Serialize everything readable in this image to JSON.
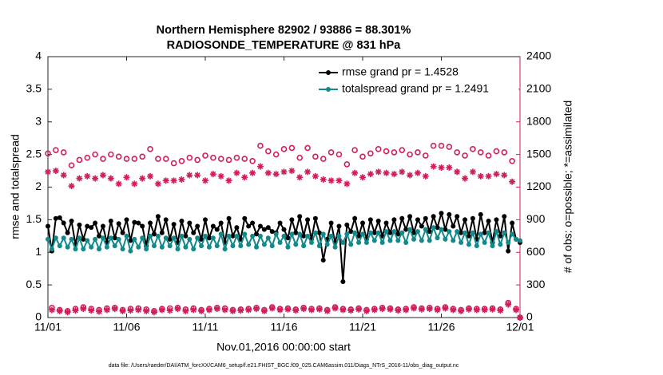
{
  "chart_data": {
    "type": "line",
    "title": [
      "Northern Hemisphere 82902 / 93886 = 88.301%",
      "RADIOSONDE_TEMPERATURE @ 831 hPa"
    ],
    "xlabel": "Nov.01,2016 00:00:00 start",
    "ylabel": "rmse and totalspread",
    "y2label": "# of obs: o=possible; *=assimilated",
    "footnote": "data file: /Users/raeder/DAI/ATM_forcXX/CAM6_setup/f.e21.FHIST_BGC.f09_025.CAM6assim.011/Diags_NTrS_2016-11/obs_diag_output.nc",
    "xlim": [
      0,
      30
    ],
    "xticks": [
      {
        "value": 0,
        "label": "11/01"
      },
      {
        "value": 5,
        "label": "11/06"
      },
      {
        "value": 10,
        "label": "11/11"
      },
      {
        "value": 15,
        "label": "11/16"
      },
      {
        "value": 20,
        "label": "11/21"
      },
      {
        "value": 25,
        "label": "11/26"
      },
      {
        "value": 30,
        "label": "12/01"
      }
    ],
    "ylim": [
      0,
      4
    ],
    "yticks": [
      0,
      0.5,
      1,
      1.5,
      2,
      2.5,
      3,
      3.5,
      4
    ],
    "y2lim": [
      0,
      2400
    ],
    "y2ticks": [
      0,
      300,
      600,
      900,
      1200,
      1500,
      1800,
      2100,
      2400
    ],
    "y2color": "#d11e5b",
    "legend": "upper right",
    "legend_text_color": "#1f4fe6",
    "x": [
      0,
      0.25,
      0.5,
      0.75,
      1,
      1.25,
      1.5,
      1.75,
      2,
      2.25,
      2.5,
      2.75,
      3,
      3.25,
      3.5,
      3.75,
      4,
      4.25,
      4.5,
      4.75,
      5,
      5.25,
      5.5,
      5.75,
      6,
      6.25,
      6.5,
      6.75,
      7,
      7.25,
      7.5,
      7.75,
      8,
      8.25,
      8.5,
      8.75,
      9,
      9.25,
      9.5,
      9.75,
      10,
      10.25,
      10.5,
      10.75,
      11,
      11.25,
      11.5,
      11.75,
      12,
      12.25,
      12.5,
      12.75,
      13,
      13.25,
      13.5,
      13.75,
      14,
      14.25,
      14.5,
      14.75,
      15,
      15.25,
      15.5,
      15.75,
      16,
      16.25,
      16.5,
      16.75,
      17,
      17.25,
      17.5,
      17.75,
      18,
      18.25,
      18.5,
      18.75,
      19,
      19.25,
      19.5,
      19.75,
      20,
      20.25,
      20.5,
      20.75,
      21,
      21.25,
      21.5,
      21.75,
      22,
      22.25,
      22.5,
      22.75,
      23,
      23.25,
      23.5,
      23.75,
      24,
      24.25,
      24.5,
      24.75,
      25,
      25.25,
      25.5,
      25.75,
      26,
      26.25,
      26.5,
      26.75,
      27,
      27.25,
      27.5,
      27.75,
      28,
      28.25,
      28.5,
      28.75,
      29,
      29.25,
      29.5,
      29.75,
      30
    ],
    "series": [
      {
        "name": "rmse grand pr = 1.4528",
        "color": "#000000",
        "marker": "dot",
        "line": true,
        "axis": "y",
        "values": [
          1.4,
          1.02,
          1.52,
          1.53,
          1.45,
          1.3,
          1.48,
          1.12,
          1.42,
          1.2,
          1.4,
          1.38,
          1.45,
          1.25,
          1.4,
          1.15,
          1.48,
          1.22,
          1.44,
          1.3,
          1.5,
          1.18,
          1.46,
          1.45,
          1.4,
          1.1,
          1.45,
          1.28,
          1.55,
          1.3,
          1.5,
          1.2,
          1.43,
          1.15,
          1.48,
          1.25,
          1.45,
          1.3,
          1.4,
          1.2,
          1.5,
          1.22,
          1.4,
          1.35,
          1.45,
          1.15,
          1.52,
          1.25,
          1.38,
          1.2,
          1.52,
          1.4,
          1.45,
          1.28,
          1.4,
          1.35,
          1.38,
          1.32,
          1.3,
          1.45,
          1.35,
          1.22,
          1.5,
          1.3,
          1.55,
          1.25,
          1.5,
          1.2,
          1.52,
          1.3,
          0.88,
          1.2,
          1.45,
          1.15,
          1.4,
          0.55,
          1.42,
          1.32,
          1.52,
          1.25,
          1.45,
          1.2,
          1.5,
          1.3,
          1.48,
          1.25,
          1.45,
          1.3,
          1.5,
          1.28,
          1.52,
          1.35,
          1.55,
          1.3,
          1.5,
          1.4,
          1.52,
          1.32,
          1.55,
          1.38,
          1.6,
          1.35,
          1.58,
          1.4,
          1.55,
          1.3,
          1.5,
          1.25,
          1.52,
          1.2,
          1.58,
          1.3,
          1.48,
          1.15,
          1.5,
          1.25,
          1.55,
          1.02,
          1.45,
          1.2,
          1.15
        ]
      },
      {
        "name": "totalspread grand pr = 1.2491",
        "color": "#12898a",
        "marker": "dot",
        "line": true,
        "axis": "y",
        "values": [
          1.2,
          1.05,
          1.22,
          1.1,
          1.22,
          1.08,
          1.2,
          1.05,
          1.22,
          1.05,
          1.18,
          1.08,
          1.2,
          1.05,
          1.22,
          1.08,
          1.22,
          1.1,
          1.2,
          1.05,
          1.25,
          1.02,
          1.2,
          1.08,
          1.22,
          1.05,
          1.25,
          1.1,
          1.25,
          1.08,
          1.22,
          1.1,
          1.22,
          1.05,
          1.25,
          1.08,
          1.2,
          1.05,
          1.22,
          1.1,
          1.25,
          1.08,
          1.22,
          1.1,
          1.28,
          1.05,
          1.25,
          1.1,
          1.25,
          1.1,
          1.28,
          1.12,
          1.25,
          1.08,
          1.25,
          1.12,
          1.22,
          1.1,
          1.28,
          1.15,
          1.25,
          1.08,
          1.28,
          1.12,
          1.28,
          1.1,
          1.25,
          1.15,
          1.3,
          1.1,
          1.28,
          1.12,
          1.25,
          1.08,
          1.25,
          1.15,
          1.28,
          1.12,
          1.3,
          1.15,
          1.28,
          1.15,
          1.3,
          1.18,
          1.3,
          1.15,
          1.32,
          1.18,
          1.32,
          1.18,
          1.3,
          1.15,
          1.35,
          1.2,
          1.32,
          1.18,
          1.35,
          1.18,
          1.38,
          1.22,
          1.35,
          1.2,
          1.32,
          1.18,
          1.32,
          1.15,
          1.3,
          1.12,
          1.3,
          1.1,
          1.28,
          1.15,
          1.3,
          1.1,
          1.32,
          1.12,
          1.3,
          1.15,
          1.28,
          1.2,
          1.18
        ]
      },
      {
        "color": "#d11e5b",
        "marker": "circle",
        "line": false,
        "axis": "y2",
        "values": [
          1510,
          90,
          1540,
          70,
          1520,
          60,
          1400,
          80,
          1450,
          95,
          1470,
          80,
          1500,
          70,
          1460,
          85,
          1500,
          90,
          1480,
          70,
          1460,
          80,
          1460,
          85,
          1480,
          75,
          1550,
          60,
          1460,
          80,
          1460,
          85,
          1420,
          90,
          1440,
          75,
          1470,
          85,
          1450,
          70,
          1490,
          80,
          1470,
          90,
          1460,
          85,
          1450,
          70,
          1470,
          75,
          1460,
          80,
          1440,
          90,
          1580,
          70,
          1530,
          95,
          1500,
          80,
          1550,
          85,
          1560,
          75,
          1470,
          90,
          1560,
          80,
          1480,
          85,
          1460,
          70,
          1520,
          95,
          1500,
          80,
          1410,
          75,
          1540,
          85,
          1480,
          70,
          1510,
          80,
          1550,
          90,
          1530,
          85,
          1520,
          75,
          1540,
          80,
          1500,
          95,
          1520,
          85,
          1490,
          90,
          1580,
          80,
          1580,
          95,
          1570,
          80,
          1520,
          70,
          1490,
          85,
          1550,
          80,
          1520,
          80,
          1490,
          85,
          1530,
          75,
          1520,
          135,
          1440,
          80,
          0
        ]
      },
      {
        "color": "#d11e5b",
        "marker": "asterisk",
        "line": false,
        "axis": "y2",
        "values": [
          1340,
          70,
          1350,
          60,
          1310,
          50,
          1210,
          65,
          1280,
          80,
          1300,
          65,
          1280,
          55,
          1310,
          70,
          1280,
          80,
          1230,
          60,
          1290,
          65,
          1230,
          70,
          1280,
          60,
          1300,
          50,
          1230,
          70,
          1260,
          65,
          1260,
          80,
          1270,
          60,
          1310,
          70,
          1310,
          60,
          1260,
          70,
          1320,
          80,
          1300,
          70,
          1260,
          60,
          1330,
          65,
          1290,
          70,
          1330,
          80,
          1390,
          60,
          1330,
          85,
          1320,
          70,
          1340,
          75,
          1350,
          65,
          1290,
          80,
          1340,
          70,
          1300,
          75,
          1270,
          60,
          1260,
          85,
          1260,
          70,
          1230,
          65,
          1330,
          75,
          1290,
          60,
          1320,
          70,
          1340,
          80,
          1330,
          75,
          1320,
          65,
          1340,
          70,
          1310,
          85,
          1330,
          75,
          1300,
          80,
          1390,
          70,
          1380,
          85,
          1380,
          70,
          1340,
          60,
          1280,
          75,
          1340,
          70,
          1300,
          70,
          1300,
          75,
          1320,
          65,
          1310,
          120,
          1250,
          70,
          0
        ]
      }
    ]
  }
}
